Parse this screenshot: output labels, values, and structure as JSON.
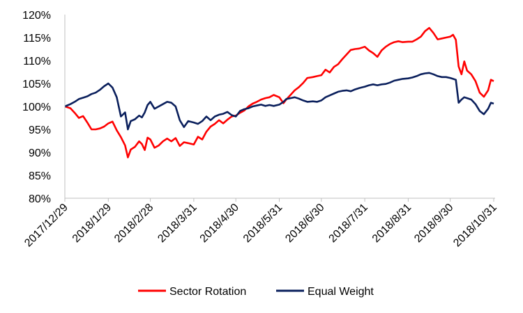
{
  "chart_data": {
    "type": "line",
    "title": "",
    "xlabel": "",
    "ylabel": "",
    "ylim": [
      80,
      120
    ],
    "y_ticks": [
      80,
      85,
      90,
      95,
      100,
      105,
      110,
      115,
      120
    ],
    "y_tick_labels": [
      "80%",
      "85%",
      "90%",
      "95%",
      "100%",
      "105%",
      "110%",
      "115%",
      "120%"
    ],
    "x_ticks": [
      "2017/12/29",
      "2018/1/29",
      "2018/2/28",
      "2018/3/31",
      "2018/4/30",
      "2018/5/31",
      "2018/6/30",
      "2018/7/31",
      "2018/8/31",
      "2018/9/30",
      "2018/10/31"
    ],
    "x_range": [
      "2017/12/29",
      "2018/11/1"
    ],
    "grid": false,
    "legend_position": "bottom",
    "series": [
      {
        "name": "Sector Rotation",
        "color": "#ff0000",
        "points": [
          [
            "2017/12/29",
            100.0
          ],
          [
            "2018/1/2",
            99.6
          ],
          [
            "2018/1/5",
            98.6
          ],
          [
            "2018/1/8",
            97.5
          ],
          [
            "2018/1/11",
            97.9
          ],
          [
            "2018/1/14",
            96.5
          ],
          [
            "2018/1/17",
            95.0
          ],
          [
            "2018/1/20",
            95.0
          ],
          [
            "2018/1/23",
            95.2
          ],
          [
            "2018/1/26",
            95.6
          ],
          [
            "2018/1/29",
            96.3
          ],
          [
            "2018/2/1",
            96.7
          ],
          [
            "2018/2/4",
            94.8
          ],
          [
            "2018/2/7",
            93.3
          ],
          [
            "2018/2/10",
            91.5
          ],
          [
            "2018/2/12",
            88.9
          ],
          [
            "2018/2/14",
            90.6
          ],
          [
            "2018/2/17",
            91.2
          ],
          [
            "2018/2/20",
            92.4
          ],
          [
            "2018/2/22",
            91.8
          ],
          [
            "2018/2/24",
            90.5
          ],
          [
            "2018/2/26",
            93.2
          ],
          [
            "2018/2/28",
            92.8
          ],
          [
            "2018/3/3",
            91.0
          ],
          [
            "2018/3/6",
            91.5
          ],
          [
            "2018/3/9",
            92.4
          ],
          [
            "2018/3/12",
            93.0
          ],
          [
            "2018/3/15",
            92.4
          ],
          [
            "2018/3/18",
            93.1
          ],
          [
            "2018/3/21",
            91.4
          ],
          [
            "2018/3/24",
            92.2
          ],
          [
            "2018/3/27",
            92.0
          ],
          [
            "2018/3/31",
            91.7
          ],
          [
            "2018/4/3",
            93.4
          ],
          [
            "2018/4/6",
            92.8
          ],
          [
            "2018/4/9",
            94.5
          ],
          [
            "2018/4/12",
            95.6
          ],
          [
            "2018/4/15",
            96.2
          ],
          [
            "2018/4/18",
            97.0
          ],
          [
            "2018/4/21",
            96.3
          ],
          [
            "2018/4/24",
            97.1
          ],
          [
            "2018/4/27",
            97.8
          ],
          [
            "2018/4/30",
            98.0
          ],
          [
            "2018/5/3",
            98.6
          ],
          [
            "2018/5/6",
            99.1
          ],
          [
            "2018/5/9",
            100.0
          ],
          [
            "2018/5/12",
            100.6
          ],
          [
            "2018/5/15",
            101.0
          ],
          [
            "2018/5/18",
            101.5
          ],
          [
            "2018/5/21",
            101.8
          ],
          [
            "2018/5/24",
            102.0
          ],
          [
            "2018/5/27",
            102.5
          ],
          [
            "2018/5/31",
            102.0
          ],
          [
            "2018/6/3",
            100.7
          ],
          [
            "2018/6/5",
            101.5
          ],
          [
            "2018/6/8",
            102.5
          ],
          [
            "2018/6/11",
            103.5
          ],
          [
            "2018/6/14",
            104.2
          ],
          [
            "2018/6/17",
            105.1
          ],
          [
            "2018/6/20",
            106.2
          ],
          [
            "2018/6/24",
            106.4
          ],
          [
            "2018/6/27",
            106.6
          ],
          [
            "2018/6/30",
            106.8
          ],
          [
            "2018/7/3",
            108.0
          ],
          [
            "2018/7/6",
            107.4
          ],
          [
            "2018/7/9",
            108.6
          ],
          [
            "2018/7/12",
            109.2
          ],
          [
            "2018/7/15",
            110.3
          ],
          [
            "2018/7/18",
            111.3
          ],
          [
            "2018/7/21",
            112.3
          ],
          [
            "2018/7/24",
            112.5
          ],
          [
            "2018/7/27",
            112.6
          ],
          [
            "2018/7/31",
            113.0
          ],
          [
            "2018/8/3",
            112.2
          ],
          [
            "2018/8/6",
            111.6
          ],
          [
            "2018/8/9",
            110.8
          ],
          [
            "2018/8/12",
            112.2
          ],
          [
            "2018/8/15",
            113.0
          ],
          [
            "2018/8/18",
            113.6
          ],
          [
            "2018/8/21",
            114.0
          ],
          [
            "2018/8/24",
            114.2
          ],
          [
            "2018/8/27",
            114.0
          ],
          [
            "2018/8/31",
            114.1
          ],
          [
            "2018/9/3",
            114.1
          ],
          [
            "2018/9/6",
            114.6
          ],
          [
            "2018/9/9",
            115.2
          ],
          [
            "2018/9/12",
            116.4
          ],
          [
            "2018/9/15",
            117.1
          ],
          [
            "2018/9/18",
            116.0
          ],
          [
            "2018/9/21",
            114.6
          ],
          [
            "2018/9/24",
            114.8
          ],
          [
            "2018/9/27",
            115.0
          ],
          [
            "2018/9/30",
            115.2
          ],
          [
            "2018/10/2",
            115.6
          ],
          [
            "2018/10/4",
            114.5
          ],
          [
            "2018/10/6",
            108.7
          ],
          [
            "2018/10/8",
            107.0
          ],
          [
            "2018/10/10",
            109.8
          ],
          [
            "2018/10/12",
            107.8
          ],
          [
            "2018/10/15",
            107.0
          ],
          [
            "2018/10/18",
            105.5
          ],
          [
            "2018/10/21",
            103.0
          ],
          [
            "2018/10/24",
            102.1
          ],
          [
            "2018/10/27",
            103.5
          ],
          [
            "2018/10/29",
            105.8
          ],
          [
            "2018/10/31",
            105.5
          ]
        ]
      },
      {
        "name": "Equal Weight",
        "color": "#0a1f5c",
        "points": [
          [
            "2017/12/29",
            100.0
          ],
          [
            "2018/1/2",
            100.5
          ],
          [
            "2018/1/5",
            101.0
          ],
          [
            "2018/1/8",
            101.6
          ],
          [
            "2018/1/11",
            101.9
          ],
          [
            "2018/1/14",
            102.2
          ],
          [
            "2018/1/17",
            102.7
          ],
          [
            "2018/1/20",
            103.0
          ],
          [
            "2018/1/23",
            103.6
          ],
          [
            "2018/1/26",
            104.4
          ],
          [
            "2018/1/29",
            105.0
          ],
          [
            "2018/2/1",
            104.1
          ],
          [
            "2018/2/4",
            102.0
          ],
          [
            "2018/2/7",
            97.8
          ],
          [
            "2018/2/10",
            98.7
          ],
          [
            "2018/2/12",
            95.0
          ],
          [
            "2018/2/14",
            96.8
          ],
          [
            "2018/2/17",
            97.2
          ],
          [
            "2018/2/20",
            98.0
          ],
          [
            "2018/2/22",
            97.6
          ],
          [
            "2018/2/24",
            98.7
          ],
          [
            "2018/2/26",
            100.3
          ],
          [
            "2018/2/28",
            101.0
          ],
          [
            "2018/3/3",
            99.5
          ],
          [
            "2018/3/6",
            100.0
          ],
          [
            "2018/3/9",
            100.5
          ],
          [
            "2018/3/12",
            101.0
          ],
          [
            "2018/3/15",
            100.8
          ],
          [
            "2018/3/18",
            100.0
          ],
          [
            "2018/3/21",
            97.0
          ],
          [
            "2018/3/24",
            95.5
          ],
          [
            "2018/3/27",
            96.8
          ],
          [
            "2018/3/31",
            96.5
          ],
          [
            "2018/4/3",
            96.2
          ],
          [
            "2018/4/6",
            96.8
          ],
          [
            "2018/4/9",
            97.8
          ],
          [
            "2018/4/12",
            97.0
          ],
          [
            "2018/4/15",
            97.8
          ],
          [
            "2018/4/18",
            98.2
          ],
          [
            "2018/4/21",
            98.4
          ],
          [
            "2018/4/24",
            98.8
          ],
          [
            "2018/4/27",
            98.1
          ],
          [
            "2018/4/30",
            97.8
          ],
          [
            "2018/5/3",
            99.0
          ],
          [
            "2018/5/6",
            99.4
          ],
          [
            "2018/5/9",
            99.6
          ],
          [
            "2018/5/12",
            100.0
          ],
          [
            "2018/5/15",
            100.2
          ],
          [
            "2018/5/18",
            100.4
          ],
          [
            "2018/5/21",
            100.1
          ],
          [
            "2018/5/24",
            100.3
          ],
          [
            "2018/5/27",
            100.1
          ],
          [
            "2018/5/31",
            100.4
          ],
          [
            "2018/6/3",
            101.0
          ],
          [
            "2018/6/5",
            101.6
          ],
          [
            "2018/6/8",
            101.8
          ],
          [
            "2018/6/11",
            102.0
          ],
          [
            "2018/6/14",
            101.7
          ],
          [
            "2018/6/17",
            101.3
          ],
          [
            "2018/6/20",
            101.0
          ],
          [
            "2018/6/24",
            101.1
          ],
          [
            "2018/6/27",
            101.0
          ],
          [
            "2018/6/30",
            101.3
          ],
          [
            "2018/7/3",
            102.0
          ],
          [
            "2018/7/6",
            102.4
          ],
          [
            "2018/7/9",
            102.8
          ],
          [
            "2018/7/12",
            103.2
          ],
          [
            "2018/7/15",
            103.4
          ],
          [
            "2018/7/18",
            103.5
          ],
          [
            "2018/7/21",
            103.3
          ],
          [
            "2018/7/24",
            103.7
          ],
          [
            "2018/7/27",
            104.0
          ],
          [
            "2018/7/31",
            104.3
          ],
          [
            "2018/8/3",
            104.6
          ],
          [
            "2018/8/6",
            104.8
          ],
          [
            "2018/8/9",
            104.6
          ],
          [
            "2018/8/12",
            104.8
          ],
          [
            "2018/8/15",
            104.9
          ],
          [
            "2018/8/18",
            105.2
          ],
          [
            "2018/8/21",
            105.6
          ],
          [
            "2018/8/24",
            105.8
          ],
          [
            "2018/8/27",
            106.0
          ],
          [
            "2018/8/31",
            106.1
          ],
          [
            "2018/9/3",
            106.3
          ],
          [
            "2018/9/6",
            106.6
          ],
          [
            "2018/9/9",
            107.0
          ],
          [
            "2018/9/12",
            107.2
          ],
          [
            "2018/9/15",
            107.3
          ],
          [
            "2018/9/18",
            107.0
          ],
          [
            "2018/9/21",
            106.6
          ],
          [
            "2018/9/24",
            106.4
          ],
          [
            "2018/9/27",
            106.4
          ],
          [
            "2018/9/30",
            106.2
          ],
          [
            "2018/10/2",
            106.0
          ],
          [
            "2018/10/4",
            105.8
          ],
          [
            "2018/10/6",
            100.8
          ],
          [
            "2018/10/8",
            101.5
          ],
          [
            "2018/10/10",
            102.0
          ],
          [
            "2018/10/12",
            101.8
          ],
          [
            "2018/10/15",
            101.5
          ],
          [
            "2018/10/18",
            100.5
          ],
          [
            "2018/10/21",
            99.0
          ],
          [
            "2018/10/24",
            98.3
          ],
          [
            "2018/10/27",
            99.5
          ],
          [
            "2018/10/29",
            100.8
          ],
          [
            "2018/10/31",
            100.6
          ]
        ]
      }
    ]
  }
}
